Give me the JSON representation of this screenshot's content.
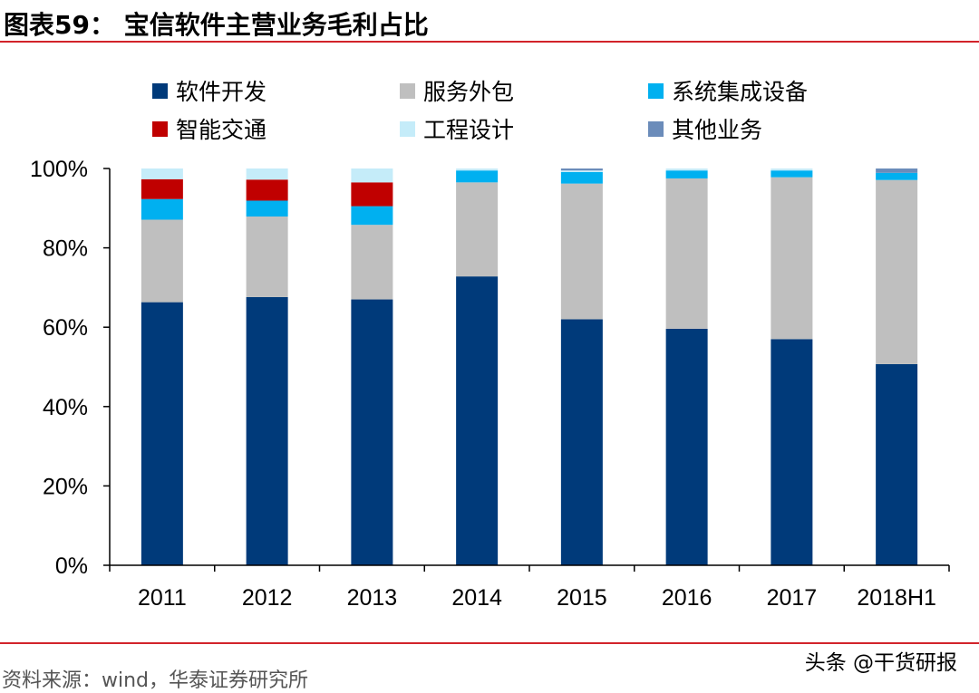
{
  "figure": {
    "title": "图表59：  宝信软件主营业务毛利占比",
    "source": "资料来源：wind，华泰证券研究所",
    "watermark": "头条 @干货研报"
  },
  "colors": {
    "rule": "#d2232a",
    "software_dev": "#003a7a",
    "outsourcing": "#bfbfbf",
    "system_integration": "#00b0f0",
    "smart_traffic": "#c00000",
    "engineering": "#c5ecf9",
    "other": "#6b8cba"
  },
  "chart_data": {
    "type": "bar",
    "stacked": true,
    "categories": [
      "2011",
      "2012",
      "2013",
      "2014",
      "2015",
      "2016",
      "2017",
      "2018H1"
    ],
    "series": [
      {
        "name": "软件开发",
        "color": "#003a7a",
        "values": [
          66.3,
          67.6,
          67.0,
          72.8,
          62.0,
          59.6,
          57.0,
          50.7
        ]
      },
      {
        "name": "服务外包",
        "color": "#bfbfbf",
        "values": [
          20.8,
          20.3,
          18.8,
          23.7,
          34.2,
          37.9,
          40.8,
          46.4
        ]
      },
      {
        "name": "系统集成设备",
        "color": "#00b0f0",
        "values": [
          5.2,
          4.0,
          4.7,
          3.0,
          2.9,
          2.0,
          1.7,
          1.8
        ]
      },
      {
        "name": "智能交通",
        "color": "#c00000",
        "values": [
          5.0,
          5.3,
          6.0,
          0,
          0,
          0,
          0,
          0
        ]
      },
      {
        "name": "工程设计",
        "color": "#c5ecf9",
        "values": [
          2.7,
          2.8,
          3.5,
          0.5,
          0.4,
          0.5,
          0.5,
          0
        ]
      },
      {
        "name": "其他业务",
        "color": "#6b8cba",
        "values": [
          0,
          0,
          0,
          0,
          0.5,
          0,
          0,
          1.1
        ]
      }
    ],
    "yticks": [
      "0%",
      "20%",
      "40%",
      "60%",
      "80%",
      "100%"
    ],
    "ylim": [
      0,
      100
    ],
    "legend_position": "top",
    "grid": false
  }
}
